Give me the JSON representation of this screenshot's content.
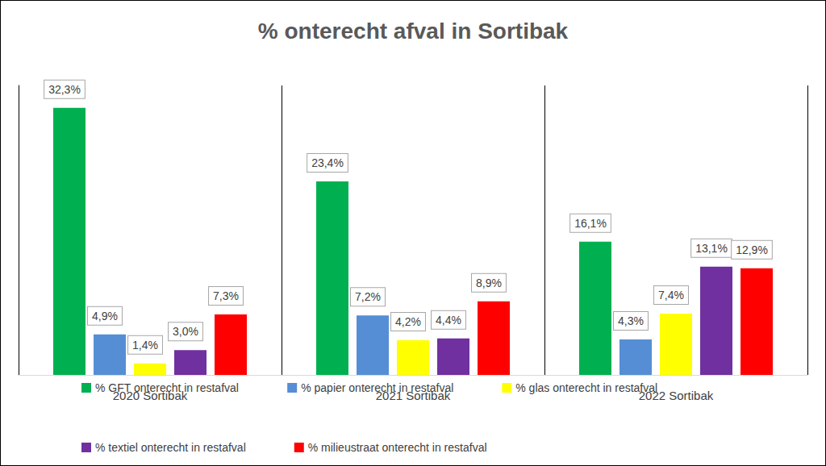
{
  "chart_data": {
    "type": "bar",
    "title": "% onterecht afval in Sortibak",
    "categories": [
      "2020 Sortibak",
      "2021 Sortibak",
      "2022 Sortibak"
    ],
    "series": [
      {
        "name": "% GFT onterecht in restafval",
        "color": "#00b050",
        "values": [
          32.3,
          23.4,
          16.1
        ],
        "value_labels": [
          "32,3%",
          "23,4%",
          "16,1%"
        ]
      },
      {
        "name": "% papier onterecht in restafval",
        "color": "#558ed5",
        "values": [
          4.9,
          7.2,
          4.3
        ],
        "value_labels": [
          "4,9%",
          "7,2%",
          "4,3%"
        ]
      },
      {
        "name": "% glas onterecht in restafval",
        "color": "#ffff00",
        "values": [
          1.4,
          4.2,
          7.4
        ],
        "value_labels": [
          "1,4%",
          "4,2%",
          "7,4%"
        ]
      },
      {
        "name": "% textiel onterecht in restafval",
        "color": "#7030a0",
        "values": [
          3.0,
          4.4,
          13.1
        ],
        "value_labels": [
          "3,0%",
          "4,4%",
          "13,1%"
        ]
      },
      {
        "name": "% milieustraat onterecht in restafval",
        "color": "#ff0000",
        "values": [
          7.3,
          8.9,
          12.9
        ],
        "value_labels": [
          "7,3%",
          "8,9%",
          "12,9%"
        ]
      }
    ],
    "ylim": [
      0,
      35
    ],
    "tick_labels": "x",
    "data_labels": true,
    "legend": "bottom",
    "grid": false
  }
}
